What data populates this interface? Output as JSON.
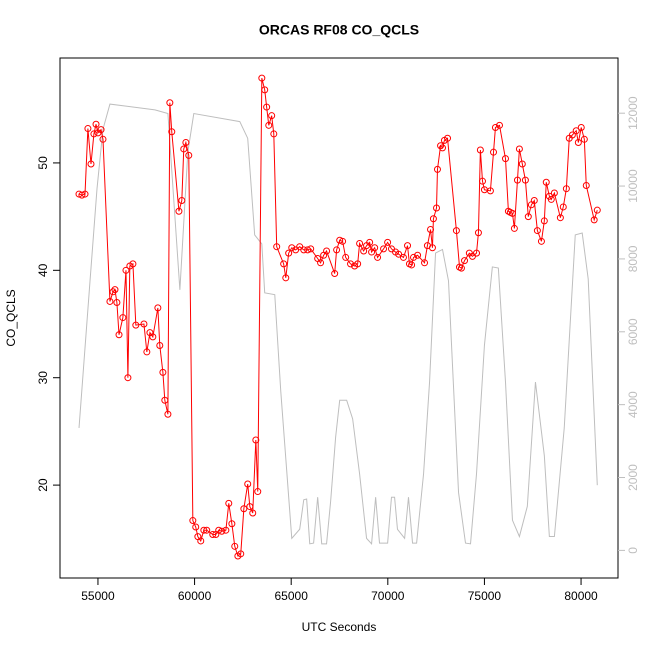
{
  "chart_data": {
    "type": "line",
    "title": "ORCAS RF08 CO_QCLS",
    "x_label": "UTC Seconds",
    "y_label": "CO_QCLS",
    "xlim": [
      53036,
      81912
    ],
    "ylim": [
      11.35,
      59.77
    ],
    "y2lim": [
      -758,
      13515
    ],
    "xticks": [
      55000,
      60000,
      65000,
      70000,
      75000,
      80000
    ],
    "yticks": [
      20,
      30,
      40,
      50
    ],
    "y2ticks": [
      0,
      2000,
      4000,
      6000,
      8000,
      10000,
      12000
    ],
    "grid": false,
    "series": [
      {
        "color": "#bebebe",
        "axis": "y2",
        "markers": false,
        "x": [
          54020,
          54590,
          54950,
          55260,
          55620,
          57950,
          58620,
          59240,
          59650,
          59960,
          62340,
          62750,
          63110,
          63480,
          63630,
          64150,
          64460,
          65030,
          65440,
          65650,
          65800,
          65960,
          66160,
          66370,
          66580,
          66830,
          67040,
          67300,
          67510,
          67870,
          68180,
          68540,
          68900,
          69160,
          69370,
          69570,
          69990,
          70190,
          70350,
          70500,
          70870,
          71070,
          71280,
          71490,
          71850,
          72160,
          72470,
          72830,
          73140,
          73660,
          74020,
          74280,
          74590,
          75000,
          75410,
          75720,
          76090,
          76450,
          76810,
          77220,
          77640,
          78100,
          78360,
          78620,
          79130,
          79700,
          80060,
          80370,
          80840
        ],
        "values": [
          3360,
          7400,
          9920,
          11560,
          12250,
          12090,
          11990,
          7150,
          10930,
          11990,
          11770,
          11310,
          8660,
          8410,
          7070,
          7020,
          4370,
          330,
          580,
          1390,
          1410,
          180,
          200,
          1460,
          180,
          180,
          1340,
          3110,
          4120,
          4120,
          3610,
          2100,
          330,
          180,
          1460,
          200,
          200,
          1460,
          1460,
          580,
          330,
          1460,
          200,
          200,
          2100,
          4620,
          8160,
          8260,
          7400,
          1590,
          200,
          180,
          2100,
          5630,
          7780,
          7750,
          4620,
          830,
          380,
          1210,
          4620,
          2600,
          380,
          380,
          3360,
          8660,
          8710,
          7450,
          1790
        ]
      },
      {
        "color": "#ff0000",
        "axis": "y",
        "markers": true,
        "x": [
          54020,
          54170,
          54330,
          54480,
          54640,
          54790,
          54900,
          55000,
          55160,
          55260,
          55620,
          55780,
          55880,
          55980,
          56090,
          56290,
          56450,
          56550,
          56650,
          56810,
          56960,
          57380,
          57530,
          57690,
          57840,
          58100,
          58200,
          58360,
          58460,
          58620,
          58720,
          58820,
          59190,
          59340,
          59440,
          59550,
          59700,
          59910,
          60060,
          60170,
          60320,
          60480,
          60630,
          60940,
          61100,
          61250,
          61410,
          61620,
          61770,
          61930,
          62080,
          62240,
          62390,
          62550,
          62750,
          62860,
          63010,
          63170,
          63270,
          63480,
          63630,
          63730,
          63840,
          63990,
          64100,
          64250,
          64610,
          64720,
          64870,
          65030,
          65230,
          65440,
          65650,
          65850,
          66010,
          66370,
          66520,
          66680,
          66830,
          67250,
          67350,
          67510,
          67660,
          67820,
          68070,
          68280,
          68440,
          68540,
          68750,
          68900,
          69060,
          69160,
          69320,
          69470,
          69780,
          69990,
          70190,
          70400,
          70560,
          70810,
          71020,
          71120,
          71230,
          71330,
          71540,
          71900,
          72050,
          72210,
          72310,
          72360,
          72520,
          72570,
          72730,
          72830,
          72930,
          73090,
          73550,
          73710,
          73810,
          73970,
          74220,
          74380,
          74590,
          74690,
          74790,
          74900,
          75000,
          75310,
          75470,
          75570,
          75780,
          76090,
          76240,
          76340,
          76450,
          76550,
          76710,
          76810,
          76960,
          77120,
          77270,
          77430,
          77580,
          77740,
          77950,
          78100,
          78200,
          78360,
          78460,
          78620,
          78930,
          79080,
          79240,
          79390,
          79550,
          79750,
          79860,
          80010,
          80170,
          80270,
          80680,
          80840
        ],
        "values": [
          47.1,
          47.0,
          47.1,
          53.2,
          49.9,
          52.7,
          53.6,
          52.8,
          53.1,
          52.2,
          37.1,
          38.0,
          38.2,
          37.0,
          34.0,
          35.6,
          40.0,
          30.0,
          40.4,
          40.6,
          34.9,
          35.0,
          32.4,
          34.2,
          33.8,
          36.5,
          33.0,
          30.5,
          27.9,
          26.6,
          55.6,
          52.9,
          45.5,
          46.5,
          51.3,
          51.9,
          50.7,
          16.7,
          16.1,
          15.2,
          14.8,
          15.8,
          15.8,
          15.4,
          15.4,
          15.8,
          15.7,
          15.8,
          18.3,
          16.4,
          14.3,
          13.4,
          13.6,
          17.8,
          20.1,
          18.0,
          17.4,
          24.2,
          19.4,
          57.9,
          56.8,
          55.2,
          53.5,
          54.4,
          52.7,
          42.2,
          40.6,
          39.3,
          41.6,
          42.1,
          41.9,
          42.2,
          41.9,
          41.9,
          42.0,
          41.1,
          40.7,
          41.4,
          41.8,
          39.7,
          41.9,
          42.8,
          42.7,
          41.2,
          40.6,
          40.4,
          40.6,
          42.5,
          41.8,
          42.3,
          42.6,
          41.7,
          42.1,
          41.2,
          42.0,
          42.6,
          42.0,
          41.7,
          41.5,
          41.2,
          42.3,
          40.6,
          40.5,
          41.2,
          41.4,
          40.7,
          42.3,
          43.8,
          42.1,
          44.8,
          45.8,
          49.4,
          51.6,
          51.4,
          52.1,
          52.3,
          43.7,
          40.3,
          40.2,
          40.9,
          41.6,
          41.3,
          41.6,
          43.5,
          51.2,
          48.3,
          47.5,
          47.4,
          51.0,
          53.3,
          53.5,
          50.4,
          45.5,
          45.4,
          45.3,
          43.9,
          48.4,
          51.3,
          49.9,
          48.4,
          45.0,
          46.1,
          46.5,
          43.7,
          42.7,
          44.6,
          48.2,
          46.9,
          46.6,
          47.2,
          44.9,
          45.9,
          47.6,
          52.3,
          52.6,
          53.0,
          51.9,
          53.3,
          52.2,
          47.9,
          44.7,
          45.6
        ]
      }
    ]
  }
}
